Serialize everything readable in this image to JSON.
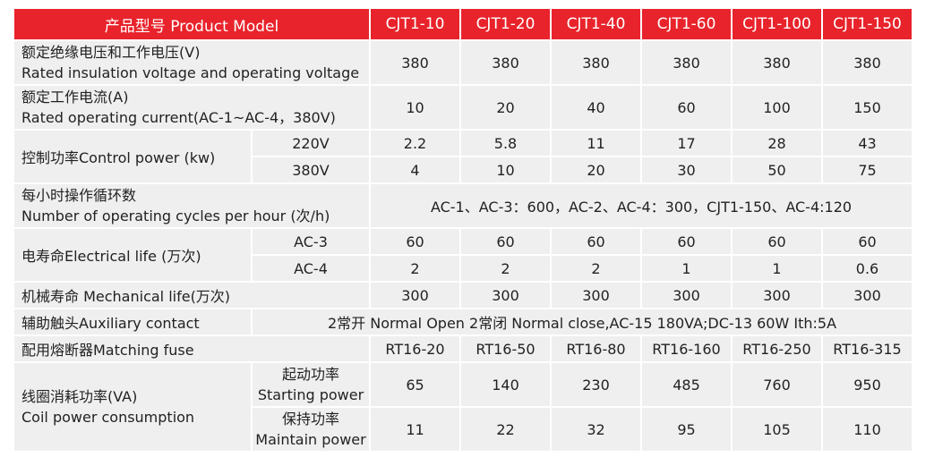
{
  "header": {
    "label": "产品型号 Product Model",
    "models": [
      "CJT1-10",
      "CJT1-20",
      "CJT1-40",
      "CJT1-60",
      "CJT1-100",
      "CJT1-150"
    ]
  },
  "insulation": {
    "label_cn": "额定绝缘电压和工作电压(V)",
    "label_en": "Rated insulation voltage and operating voltage",
    "values": [
      "380",
      "380",
      "380",
      "380",
      "380",
      "380"
    ]
  },
  "current": {
    "label_cn": "额定工作电流(A)",
    "label_en": "Rated operating current(AC-1~AC-4，380V)",
    "values": [
      "10",
      "20",
      "40",
      "60",
      "100",
      "150"
    ]
  },
  "control_power": {
    "label": "控制功率Control power (kw)",
    "rows": [
      {
        "label": "220V",
        "values": [
          "2.2",
          "5.8",
          "11",
          "17",
          "28",
          "43"
        ]
      },
      {
        "label": "380V",
        "values": [
          "4",
          "10",
          "20",
          "30",
          "50",
          "75"
        ]
      }
    ]
  },
  "cycles": {
    "label_cn": "每小时操作循环数",
    "label_en": "Number of operating cycles per hour (次/h)",
    "value": "AC-1、AC-3：600，AC-2、AC-4：300，CJT1-150、AC-4:120"
  },
  "electrical_life": {
    "label": "电寿命Electrical life (万次)",
    "rows": [
      {
        "label": "AC-3",
        "values": [
          "60",
          "60",
          "60",
          "60",
          "60",
          "60"
        ]
      },
      {
        "label": "AC-4",
        "values": [
          "2",
          "2",
          "2",
          "1",
          "1",
          "0.6"
        ]
      }
    ]
  },
  "mechanical_life": {
    "label": "机械寿命 Mechanical life(万次)",
    "values": [
      "300",
      "300",
      "300",
      "300",
      "300",
      "300"
    ]
  },
  "auxiliary": {
    "label": "辅助触头Auxiliary contact",
    "value": "2常开 Normal Open  2常闭 Normal close,AC-15  180VA;DC-13  60W  Ith:5A"
  },
  "fuse": {
    "label": "配用熔断器Matching fuse",
    "values": [
      "RT16-20",
      "RT16-50",
      "RT16-80",
      "RT16-160",
      "RT16-250",
      "RT16-315"
    ]
  },
  "coil": {
    "label_cn": "线圈消耗功率(VA)",
    "label_en": "Coil power consumption",
    "rows": [
      {
        "label_cn": "起动功率",
        "label_en": "Starting power",
        "values": [
          "65",
          "140",
          "230",
          "485",
          "760",
          "950"
        ]
      },
      {
        "label_cn": "保持功率",
        "label_en": "Maintain power",
        "values": [
          "11",
          "22",
          "32",
          "95",
          "105",
          "110"
        ]
      }
    ]
  }
}
